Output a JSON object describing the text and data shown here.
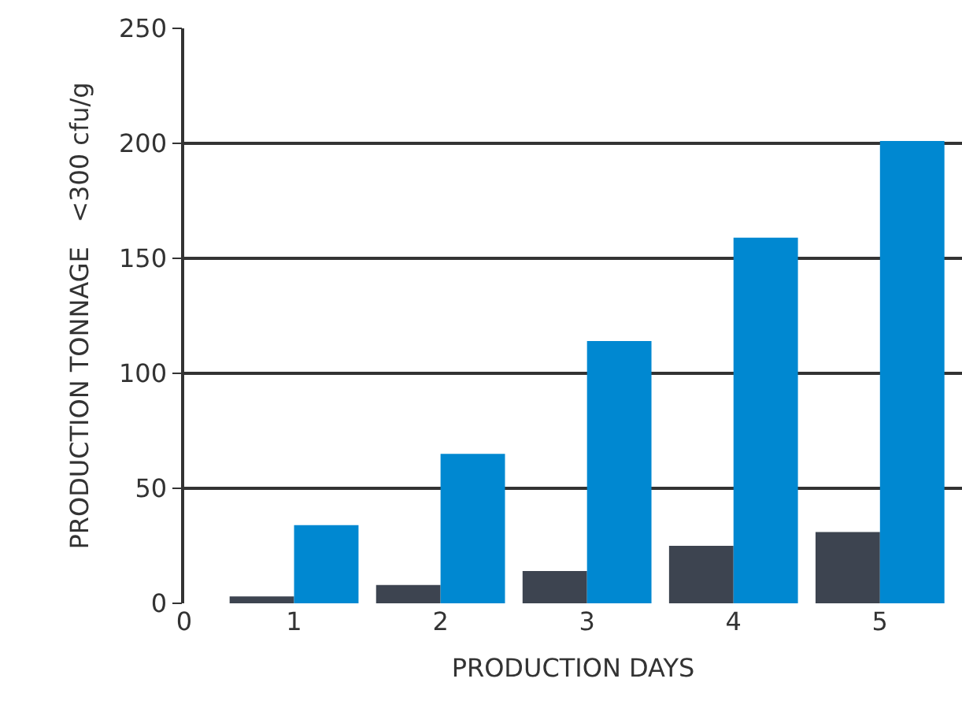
{
  "chart_data": {
    "type": "bar",
    "xlabel": "PRODUCTION DAYS",
    "ylabel": "PRODUCTION TONNAGE   <300 cfu/g",
    "x": [
      1,
      2,
      3,
      4,
      5
    ],
    "series": [
      {
        "color": "#3d4450",
        "values": [
          3,
          8,
          14,
          25,
          31
        ]
      },
      {
        "color": "#0088d1",
        "values": [
          34,
          65,
          114,
          159,
          201
        ]
      }
    ],
    "xlim": [
      0.25,
      5.56
    ],
    "xticks": [
      {
        "value": 0.25,
        "label": "0"
      },
      1,
      2,
      3,
      4,
      5
    ],
    "ylim": [
      0,
      250
    ],
    "yticks": [
      0,
      50,
      100,
      150,
      200,
      250
    ],
    "grid": "y"
  }
}
